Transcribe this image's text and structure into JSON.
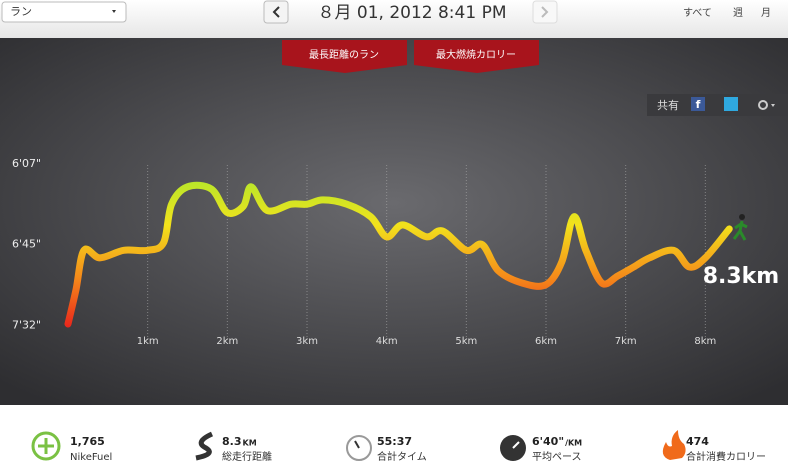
{
  "header": {
    "activity": "ラン",
    "date": "８月 01, 2012 8:41 PM",
    "periods": [
      "すべて",
      "週",
      "月"
    ]
  },
  "tabs": [
    "最長距離のラン",
    "最大燃焼カロリー"
  ],
  "share": "共有",
  "chart": {
    "type": "line",
    "x": [
      0,
      0.1,
      0.2,
      0.4,
      0.7,
      1.0,
      1.2,
      1.3,
      1.5,
      1.8,
      2.0,
      2.2,
      2.3,
      2.5,
      2.8,
      3.0,
      3.2,
      3.5,
      3.8,
      4.0,
      4.2,
      4.5,
      4.7,
      5.0,
      5.2,
      5.4,
      5.7,
      6.0,
      6.2,
      6.35,
      6.5,
      6.7,
      6.9,
      7.1,
      7.3,
      7.6,
      7.8,
      8.0,
      8.3
    ],
    "values": [
      451,
      430,
      408,
      412,
      408,
      408,
      404,
      385,
      377,
      378,
      389,
      386,
      377,
      388,
      385,
      385,
      383,
      385,
      391,
      401,
      395,
      401,
      398,
      408,
      405,
      419,
      426,
      427,
      414,
      391,
      408,
      426,
      422,
      417,
      412,
      408,
      417,
      412,
      397
    ],
    "xlim": [
      0,
      9
    ],
    "ylim": [
      465,
      353
    ],
    "xticks": [
      {
        "value": 1,
        "label": "1km"
      },
      {
        "value": 2,
        "label": "2km"
      },
      {
        "value": 3,
        "label": "3km"
      },
      {
        "value": 4,
        "label": "4km"
      },
      {
        "value": 5,
        "label": "5km"
      },
      {
        "value": 6,
        "label": "6km"
      },
      {
        "value": 7,
        "label": "7km"
      },
      {
        "value": 8,
        "label": "8km"
      }
    ],
    "yticks": [
      {
        "value": 367,
        "label": "6'07\""
      },
      {
        "value": 405,
        "label": "6'45\""
      },
      {
        "value": 452,
        "label": "7'32\""
      }
    ],
    "end_label": "8.3km"
  },
  "stats": [
    {
      "value": "1,765",
      "label": "NikeFuel"
    },
    {
      "value": "8.3",
      "unit": "KM",
      "label": "総走行距離"
    },
    {
      "value": "55:37",
      "label": "合計タイム"
    },
    {
      "value": "6'40\"",
      "unit": "/KM",
      "label": "平均ペース"
    },
    {
      "value": "474",
      "label": "合計消費カロリー"
    }
  ]
}
